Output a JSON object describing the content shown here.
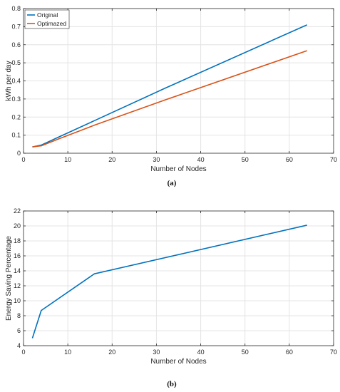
{
  "chart_data": [
    {
      "type": "line",
      "caption": "(a)",
      "title": "",
      "xlabel": "Number of Nodes",
      "ylabel": "kWh per day",
      "xlim": [
        0,
        70
      ],
      "ylim": [
        0,
        0.8
      ],
      "xticks": [
        "0",
        "10",
        "20",
        "30",
        "40",
        "50",
        "60",
        "70"
      ],
      "yticks": [
        "0",
        "0.1",
        "0.2",
        "0.3",
        "0.4",
        "0.5",
        "0.6",
        "0.7",
        "0.8"
      ],
      "grid": true,
      "legend_position": "top-left",
      "series": [
        {
          "name": "Original",
          "color": "#0072BD",
          "x": [
            2,
            4,
            8,
            16,
            32,
            64
          ],
          "y": [
            0.035,
            0.045,
            0.09,
            0.18,
            0.36,
            0.71
          ]
        },
        {
          "name": "Optimazed",
          "color": "#D95319",
          "x": [
            2,
            4,
            8,
            16,
            32,
            64
          ],
          "y": [
            0.035,
            0.041,
            0.08,
            0.155,
            0.295,
            0.567
          ]
        }
      ]
    },
    {
      "type": "line",
      "caption": "(b)",
      "title": "",
      "xlabel": "Number of Nodes",
      "ylabel": "Energy Saving Percentage",
      "xlim": [
        0,
        70
      ],
      "ylim": [
        4,
        22
      ],
      "xticks": [
        "0",
        "10",
        "20",
        "30",
        "40",
        "50",
        "60",
        "70"
      ],
      "yticks": [
        "4",
        "6",
        "8",
        "10",
        "12",
        "14",
        "16",
        "18",
        "20",
        "22"
      ],
      "grid": true,
      "series": [
        {
          "color": "#0072BD",
          "x": [
            2,
            4,
            16,
            64
          ],
          "y": [
            5.0,
            8.7,
            13.6,
            20.1
          ]
        }
      ]
    }
  ]
}
